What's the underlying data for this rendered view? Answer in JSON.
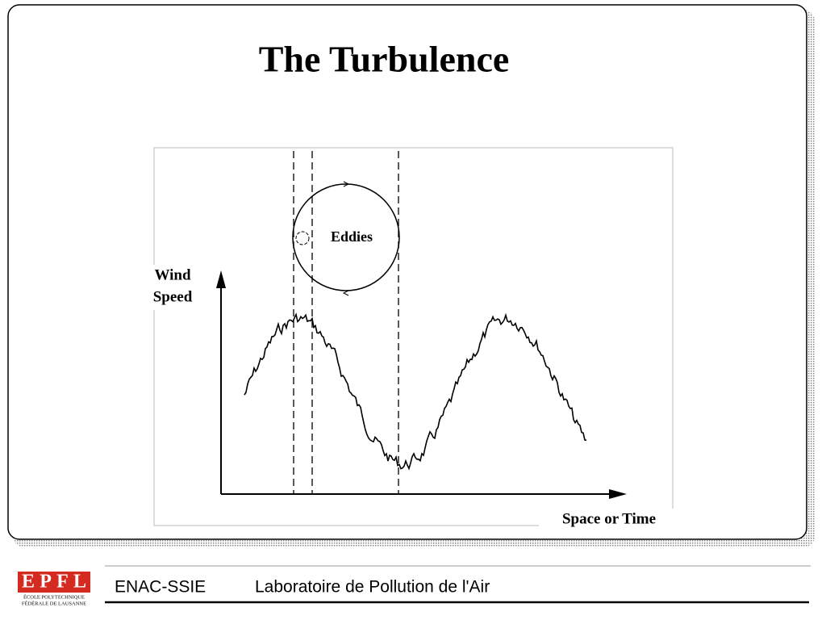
{
  "slide": {
    "title": "The Turbulence",
    "diagram": {
      "eddies_label": "Eddies",
      "y_axis_label": [
        "Wind",
        "Speed"
      ],
      "x_axis_label": "Space or Time"
    }
  },
  "footer": {
    "logo": "EPFL",
    "logo_caption": [
      "ÉCOLE POLYTECHNIQUE",
      "FÉDÉRALE DE LAUSANNE"
    ],
    "unit": "ENAC-SSIE",
    "lab": "Laboratoire de Pollution de l'Air"
  }
}
